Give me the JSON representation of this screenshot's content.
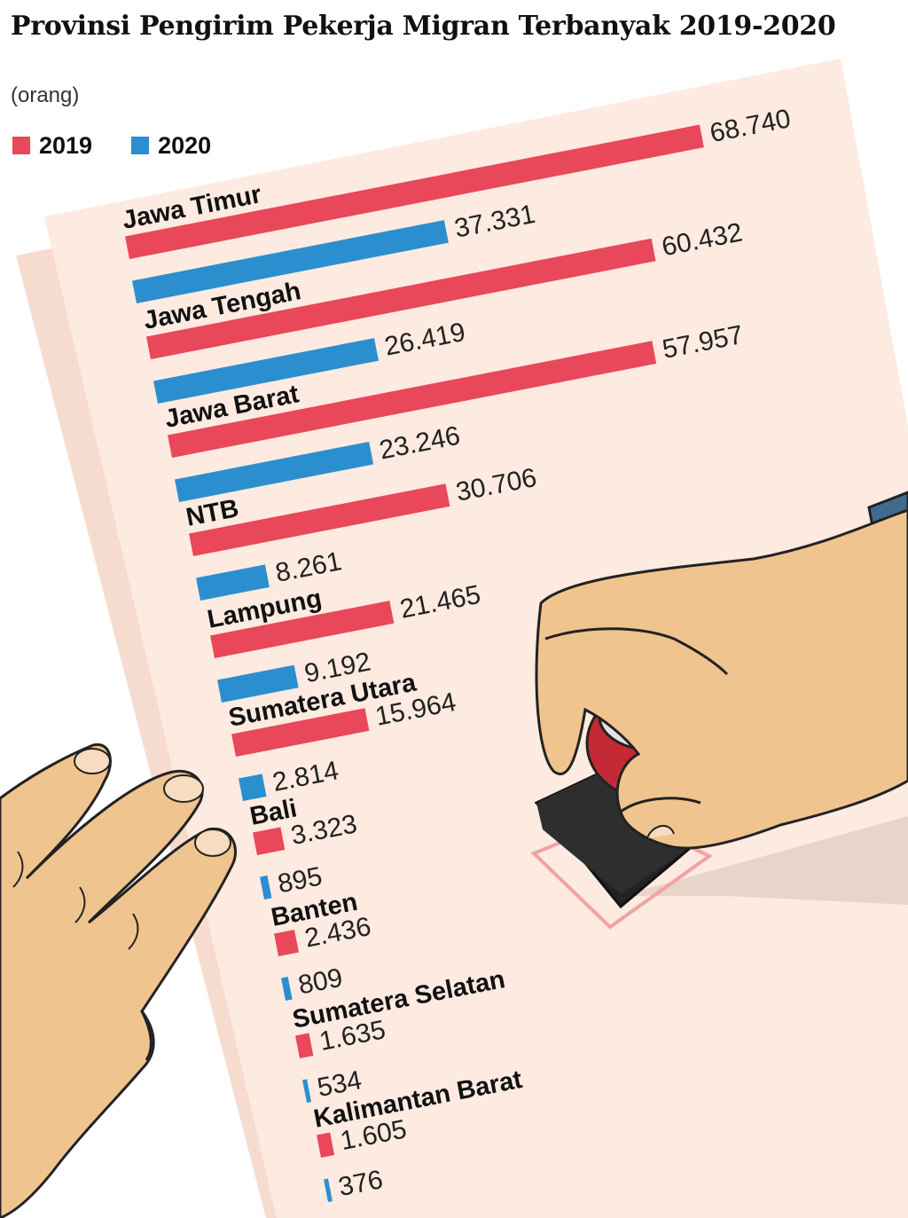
{
  "header": {
    "title": "Provinsi Pengirim Pekerja Migran Terbanyak 2019-2020",
    "unit": "(orang)"
  },
  "legend": [
    {
      "label": "2019",
      "color": "#e8485a"
    },
    {
      "label": "2020",
      "color": "#2b8fcf"
    }
  ],
  "colors": {
    "paper": "#fdeae0",
    "paper_shadow": "#f6dccf",
    "skin": "#f0c48e",
    "skin_shadow": "#d9a772",
    "stamp_red": "#c42a35",
    "stamp_black": "#222222",
    "sleeve": "#3f6c8e"
  },
  "chart_data": {
    "type": "bar",
    "orientation": "horizontal",
    "unit": "(orang)",
    "categories": [
      "Jawa Timur",
      "Jawa Tengah",
      "Jawa Barat",
      "NTB",
      "Lampung",
      "Sumatera Utara",
      "Bali",
      "Banten",
      "Sumatera Selatan",
      "Kalimantan Barat"
    ],
    "series": [
      {
        "name": "2019",
        "color": "#e8485a",
        "values": [
          68740,
          60432,
          57957,
          30706,
          21465,
          15964,
          3323,
          2436,
          1635,
          1605
        ],
        "labels": [
          "68.740",
          "60.432",
          "57.957",
          "30.706",
          "21.465",
          "15.964",
          "3.323",
          "2.436",
          "1.635",
          "1.605"
        ]
      },
      {
        "name": "2020",
        "color": "#2b8fcf",
        "values": [
          37331,
          26419,
          23246,
          8261,
          9192,
          2814,
          895,
          809,
          534,
          376
        ],
        "labels": [
          "37.331",
          "26.419",
          "23.246",
          "8.261",
          "9.192",
          "2.814",
          "895",
          "809",
          "534",
          "376"
        ]
      }
    ],
    "legend_position": "top-left",
    "grid": false
  }
}
